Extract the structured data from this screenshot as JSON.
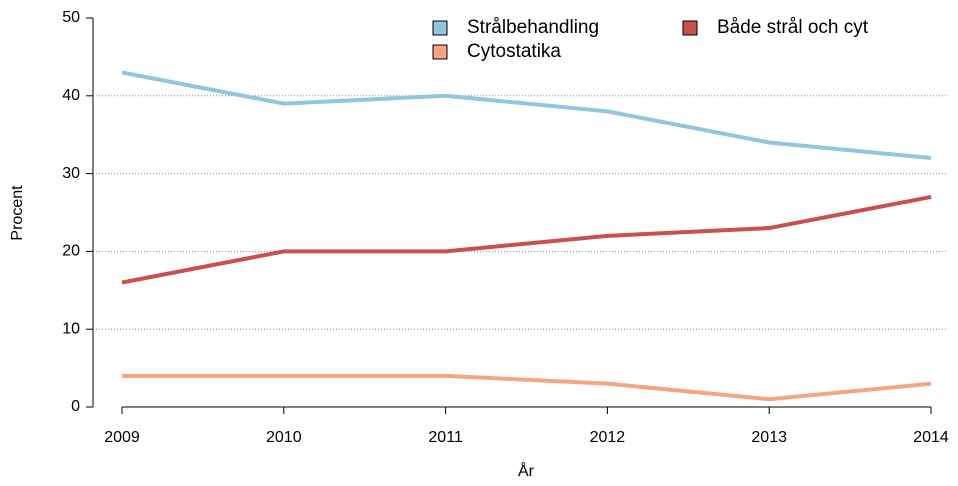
{
  "chart_data": {
    "type": "line",
    "x": [
      2009,
      2010,
      2011,
      2012,
      2013,
      2014
    ],
    "xlabel": "År",
    "ylabel": "Procent",
    "xlim": [
      2009,
      2014
    ],
    "xticks": [
      2009,
      2010,
      2011,
      2012,
      2013,
      2014
    ],
    "ylim": [
      0,
      50
    ],
    "yticks": [
      0,
      10,
      20,
      30,
      40,
      50
    ],
    "grid": true,
    "legend": "top",
    "series": [
      {
        "name": "Strålbehandling",
        "color": "#92c5de",
        "values": [
          43,
          39,
          40,
          38,
          34,
          32
        ]
      },
      {
        "name": "Cytostatika",
        "color": "#f4a582",
        "values": [
          4,
          4,
          4,
          3,
          1,
          3
        ]
      },
      {
        "name": "Både strål och cyt",
        "color": "#c9504c",
        "values": [
          16,
          20,
          20,
          22,
          23,
          27
        ]
      }
    ]
  }
}
